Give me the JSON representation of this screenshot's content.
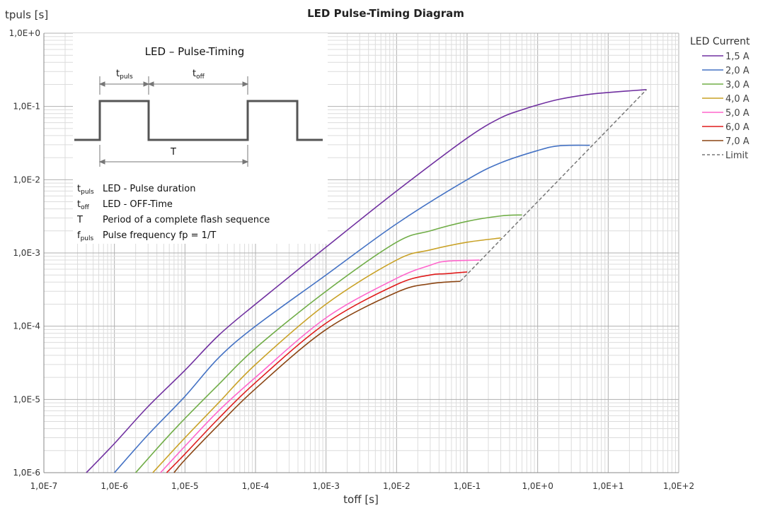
{
  "chart_data": {
    "type": "line",
    "title": "LED Pulse-Timing Diagram",
    "xlabel": "toff [s]",
    "ylabel": "tpuls [s]",
    "x_scale": "log",
    "y_scale": "log",
    "xlim": [
      1e-07,
      100
    ],
    "ylim": [
      1e-06,
      1
    ],
    "x_ticks": [
      1e-07,
      1e-06,
      1e-05,
      0.0001,
      0.001,
      0.01,
      0.1,
      1,
      10,
      100
    ],
    "x_tick_labels": [
      "1,0E-7",
      "1,0E-6",
      "1,0E-5",
      "1,0E-4",
      "1,0E-3",
      "1,0E-2",
      "1,0E-1",
      "1,0E+0",
      "1,0E+1",
      "1,0E+2"
    ],
    "y_ticks": [
      1e-06,
      1e-05,
      0.0001,
      0.001,
      0.01,
      0.1,
      1
    ],
    "y_tick_labels": [
      "1,0E-6",
      "1,0E-5",
      "1,0E-4",
      "1,0E-3",
      "1,0E-2",
      "1,0E-1",
      "1,0E+0"
    ],
    "grid": true,
    "legend_title": "LED Current",
    "legend_position": "right",
    "series": [
      {
        "name": "1,5 A",
        "color": "#7030a0",
        "dash": false,
        "x": [
          4e-07,
          1e-06,
          3e-06,
          1e-05,
          3e-05,
          0.0001,
          0.001,
          0.01,
          0.1,
          0.3,
          0.6,
          1,
          2,
          5,
          10,
          35
        ],
        "y": [
          1e-06,
          2.5e-06,
          8e-06,
          2.5e-05,
          7.5e-05,
          0.0002,
          0.0012,
          0.007,
          0.037,
          0.07,
          0.09,
          0.105,
          0.125,
          0.145,
          0.155,
          0.17
        ]
      },
      {
        "name": "2,0 A",
        "color": "#4472c4",
        "dash": false,
        "x": [
          1e-06,
          3e-06,
          1e-05,
          3e-05,
          0.0001,
          0.001,
          0.01,
          0.1,
          0.3,
          1,
          2,
          5.5
        ],
        "y": [
          1e-06,
          3.3e-06,
          1.1e-05,
          3.7e-05,
          0.0001,
          0.0005,
          0.0025,
          0.01,
          0.017,
          0.025,
          0.029,
          0.0295
        ]
      },
      {
        "name": "3,0 A",
        "color": "#70ad47",
        "dash": false,
        "x": [
          2e-06,
          5e-06,
          1e-05,
          3e-05,
          0.0001,
          0.001,
          0.01,
          0.03,
          0.1,
          0.3,
          0.6
        ],
        "y": [
          1e-06,
          2.7e-06,
          5.5e-06,
          1.6e-05,
          5e-05,
          0.0003,
          0.0014,
          0.002,
          0.0027,
          0.0032,
          0.0033
        ]
      },
      {
        "name": "4,0 A",
        "color": "#c9a227",
        "dash": false,
        "x": [
          3.5e-06,
          1e-05,
          3e-05,
          0.0001,
          0.001,
          0.01,
          0.03,
          0.1,
          0.3
        ],
        "y": [
          1e-06,
          3e-06,
          9e-06,
          3e-05,
          0.0002,
          0.0008,
          0.0011,
          0.0014,
          0.0016
        ]
      },
      {
        "name": "5,0 A",
        "color": "#ff66cc",
        "dash": false,
        "x": [
          4.5e-06,
          1e-05,
          3e-05,
          0.0001,
          0.001,
          0.01,
          0.03,
          0.05,
          0.15
        ],
        "y": [
          1e-06,
          2.3e-06,
          7e-06,
          2e-05,
          0.00013,
          0.00045,
          0.00068,
          0.00077,
          0.0008
        ]
      },
      {
        "name": "6,0 A",
        "color": "#e01b1b",
        "dash": false,
        "x": [
          5.5e-06,
          1e-05,
          3e-05,
          0.0001,
          0.001,
          0.01,
          0.03,
          0.05,
          0.1
        ],
        "y": [
          1e-06,
          1.8e-06,
          5.5e-06,
          1.7e-05,
          0.00011,
          0.00037,
          0.0005,
          0.00052,
          0.00055
        ]
      },
      {
        "name": "7,0 A",
        "color": "#8b4513",
        "dash": false,
        "x": [
          7e-06,
          1e-05,
          3e-05,
          0.0001,
          0.001,
          0.01,
          0.03,
          0.08
        ],
        "y": [
          1e-06,
          1.5e-06,
          4.5e-06,
          1.4e-05,
          9e-05,
          0.00029,
          0.00038,
          0.00041
        ]
      },
      {
        "name": "Limit",
        "color": "#777777",
        "dash": true,
        "x": [
          0.08,
          35
        ],
        "y": [
          0.00041,
          0.17
        ]
      }
    ]
  },
  "inset": {
    "title": "LED – Pulse-Timing",
    "label_tpuls_main": "t",
    "label_tpuls_sub": "puls",
    "label_toff_main": "t",
    "label_toff_sub": "off",
    "label_T": "T",
    "definitions": [
      {
        "sym_main": "t",
        "sym_sub": "puls",
        "text": "LED - Pulse duration"
      },
      {
        "sym_main": "t",
        "sym_sub": "off",
        "text": "LED - OFF-Time"
      },
      {
        "sym_main": "T",
        "sym_sub": "",
        "text": "Period of a complete flash sequence"
      },
      {
        "sym_main": "f",
        "sym_sub": "puls",
        "text": "Pulse frequency fp = 1/T"
      }
    ]
  }
}
